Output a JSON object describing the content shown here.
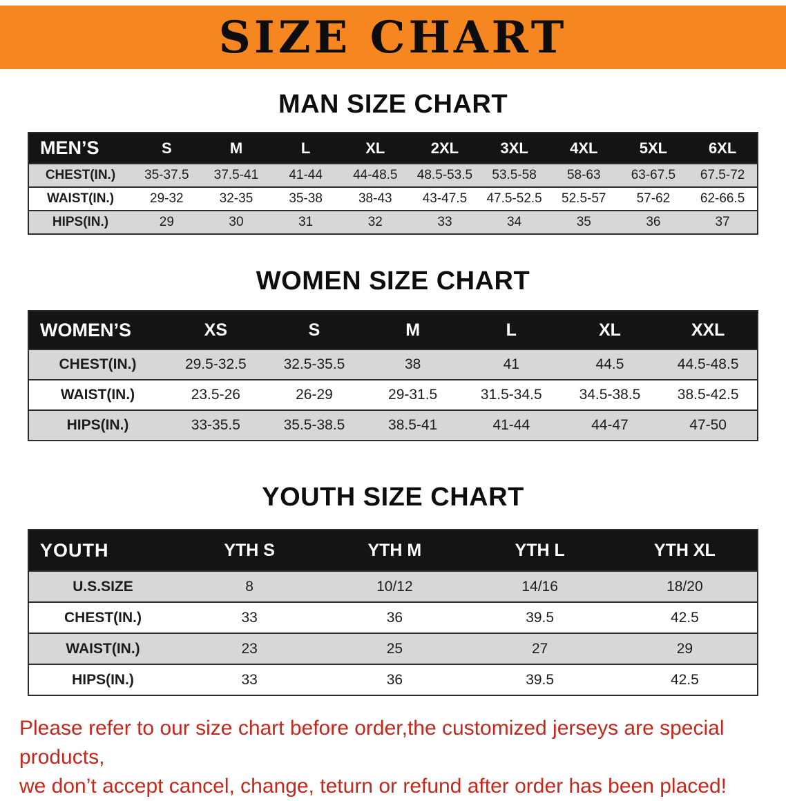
{
  "banner": {
    "title": "SIZE CHART"
  },
  "colors": {
    "banner_bg": "#f6861f",
    "table_header_bg": "#141414",
    "shaded_row_bg": "#d7d7d7",
    "footer_text": "#c2281c"
  },
  "sections": [
    {
      "id": "mens",
      "heading": "MAN SIZE CHART",
      "table": {
        "header": [
          "MEN’S",
          "S",
          "M",
          "L",
          "XL",
          "2XL",
          "3XL",
          "4XL",
          "5XL",
          "6XL"
        ],
        "rows": [
          [
            "CHEST(IN.)",
            "35-37.5",
            "37.5-41",
            "41-44",
            "44-48.5",
            "48.5-53.5",
            "53.5-58",
            "58-63",
            "63-67.5",
            "67.5-72"
          ],
          [
            "WAIST(IN.)",
            "29-32",
            "32-35",
            "35-38",
            "38-43",
            "43-47.5",
            "47.5-52.5",
            "52.5-57",
            "57-62",
            "62-66.5"
          ],
          [
            "HIPS(IN.)",
            "29",
            "30",
            "31",
            "32",
            "33",
            "34",
            "35",
            "36",
            "37"
          ]
        ]
      }
    },
    {
      "id": "womens",
      "heading": "WOMEN SIZE CHART",
      "table": {
        "header": [
          "WOMEN’S",
          "XS",
          "S",
          "M",
          "L",
          "XL",
          "XXL"
        ],
        "rows": [
          [
            "CHEST(IN.)",
            "29.5-32.5",
            "32.5-35.5",
            "38",
            "41",
            "44.5",
            "44.5-48.5"
          ],
          [
            "WAIST(IN.)",
            "23.5-26",
            "26-29",
            "29-31.5",
            "31.5-34.5",
            "34.5-38.5",
            "38.5-42.5"
          ],
          [
            "HIPS(IN.)",
            "33-35.5",
            "35.5-38.5",
            "38.5-41",
            "41-44",
            "44-47",
            "47-50"
          ]
        ]
      }
    },
    {
      "id": "youth",
      "heading": "YOUTH SIZE CHART",
      "table": {
        "header": [
          "YOUTH",
          "YTH S",
          "YTH M",
          "YTH L",
          "YTH XL"
        ],
        "rows": [
          [
            "U.S.SIZE",
            "8",
            "10/12",
            "14/16",
            "18/20"
          ],
          [
            "CHEST(IN.)",
            "33",
            "36",
            "39.5",
            "42.5"
          ],
          [
            "WAIST(IN.)",
            "23",
            "25",
            "27",
            "29"
          ],
          [
            "HIPS(IN.)",
            "33",
            "36",
            "39.5",
            "42.5"
          ]
        ]
      }
    }
  ],
  "footer": {
    "line1": "Please refer to our size chart before order,the customized jerseys are special products,",
    "line2": "we don’t accept cancel, change, teturn or refund after order has been placed!"
  }
}
